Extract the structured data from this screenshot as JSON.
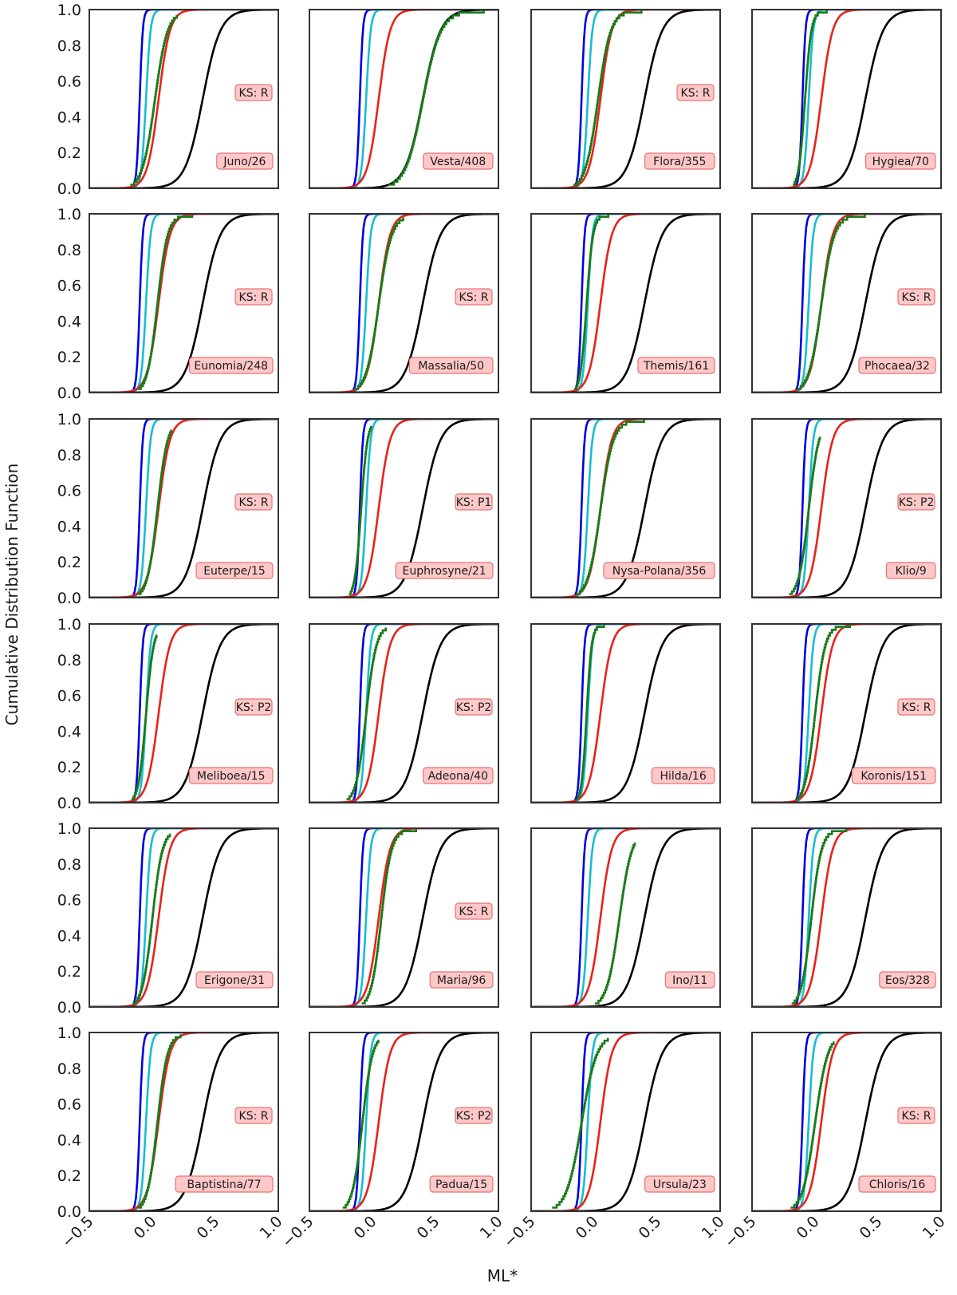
{
  "figure": {
    "ylabel": "Cumulative Distribution Function",
    "xlabel": "ML*"
  },
  "chart_data": {
    "type": "line",
    "title": "",
    "xlabel": "ML*",
    "ylabel": "Cumulative Distribution Function",
    "xlim": [
      -0.5,
      1.0
    ],
    "ylim": [
      0.0,
      1.0
    ],
    "xticks": [
      "−0.5",
      "0.0",
      "0.5",
      "1.0"
    ],
    "yticks": [
      "0.0",
      "0.2",
      "0.4",
      "0.6",
      "0.8",
      "1.0"
    ],
    "grid": false,
    "layout": {
      "rows": 6,
      "cols": 4
    },
    "reference_series": [
      {
        "name": "blue reference CDF",
        "color": "#0000dd",
        "center": -0.1,
        "scale": 0.012
      },
      {
        "name": "cyan reference CDF",
        "color": "#17becf",
        "center": -0.05,
        "scale": 0.018
      },
      {
        "name": "red reference CDF",
        "color": "#e8221a",
        "center": 0.05,
        "scale": 0.045
      },
      {
        "name": "black reference CDF",
        "color": "#000000",
        "center": 0.4,
        "scale": 0.07
      }
    ],
    "observed_color": "#1a7a1a",
    "panels": [
      {
        "family": "Juno/26",
        "ks": "KS: R",
        "green_center": 0.02,
        "green_scale": 0.05,
        "green_end": 0.97
      },
      {
        "family": "Vesta/408",
        "ks": "",
        "green_center": 0.4,
        "green_scale": 0.07,
        "green_end": 1.0
      },
      {
        "family": "Flora/355",
        "ks": "KS: R",
        "green_center": 0.03,
        "green_scale": 0.05,
        "green_end": 1.0
      },
      {
        "family": "Hygiea/70",
        "ks": "",
        "green_center": -0.08,
        "green_scale": 0.025,
        "green_end": 1.0
      },
      {
        "family": "Eunomia/248",
        "ks": "KS: R",
        "green_center": 0.04,
        "green_scale": 0.04,
        "green_end": 1.0
      },
      {
        "family": "Massalia/50",
        "ks": "KS: R",
        "green_center": 0.05,
        "green_scale": 0.05,
        "green_end": 0.98
      },
      {
        "family": "Themis/161",
        "ks": "",
        "green_center": -0.06,
        "green_scale": 0.025,
        "green_end": 1.0
      },
      {
        "family": "Phocaea/32",
        "ks": "KS: R",
        "green_center": 0.05,
        "green_scale": 0.05,
        "green_end": 1.0
      },
      {
        "family": "Euterpe/15",
        "ks": "KS: R",
        "green_center": 0.04,
        "green_scale": 0.04,
        "green_end": 0.94
      },
      {
        "family": "Euphrosyne/21",
        "ks": "KS: P1",
        "green_center": -0.09,
        "green_scale": 0.025,
        "green_end": 0.96
      },
      {
        "family": "Nysa-Polana/356",
        "ks": "",
        "green_center": 0.05,
        "green_scale": 0.05,
        "green_end": 1.0
      },
      {
        "family": "Klio/9",
        "ks": "KS: P2",
        "green_center": -0.05,
        "green_scale": 0.04,
        "green_end": 0.9
      },
      {
        "family": "Meliboea/15",
        "ks": "KS: P2",
        "green_center": -0.05,
        "green_scale": 0.03,
        "green_end": 0.94
      },
      {
        "family": "Adeona/40",
        "ks": "KS: P2",
        "green_center": -0.05,
        "green_scale": 0.04,
        "green_end": 0.98
      },
      {
        "family": "Hilda/16",
        "ks": "",
        "green_center": -0.06,
        "green_scale": 0.02,
        "green_end": 1.0
      },
      {
        "family": "Koronis/151",
        "ks": "KS: R",
        "green_center": 0.0,
        "green_scale": 0.04,
        "green_end": 1.0
      },
      {
        "family": "Erigone/31",
        "ks": "",
        "green_center": 0.0,
        "green_scale": 0.04,
        "green_end": 0.97
      },
      {
        "family": "Maria/96",
        "ks": "KS: R",
        "green_center": 0.07,
        "green_scale": 0.04,
        "green_end": 1.0
      },
      {
        "family": "Ino/11",
        "ks": "",
        "green_center": 0.2,
        "green_scale": 0.05,
        "green_end": 0.92
      },
      {
        "family": "Eos/328",
        "ks": "",
        "green_center": -0.03,
        "green_scale": 0.04,
        "green_end": 1.0
      },
      {
        "family": "Baptistina/77",
        "ks": "KS: R",
        "green_center": 0.04,
        "green_scale": 0.04,
        "green_end": 0.99
      },
      {
        "family": "Padua/15",
        "ks": "KS: P2",
        "green_center": -0.08,
        "green_scale": 0.04,
        "green_end": 0.96
      },
      {
        "family": "Ursula/23",
        "ks": "",
        "green_center": -0.1,
        "green_scale": 0.06,
        "green_end": 0.97
      },
      {
        "family": "Chloris/16",
        "ks": "KS: R",
        "green_center": 0.0,
        "green_scale": 0.05,
        "green_end": 0.95
      }
    ]
  }
}
